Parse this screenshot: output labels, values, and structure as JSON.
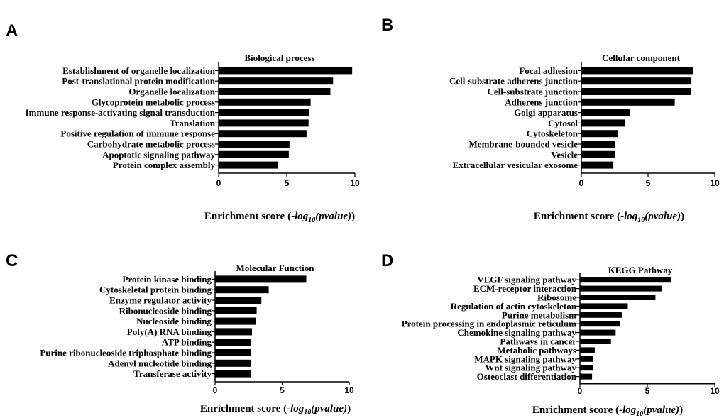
{
  "colors": {
    "bar": "#000000",
    "axis": "#000000",
    "background": "#ffffff"
  },
  "chart_data": [
    {
      "panel": "A",
      "type": "bar",
      "orientation": "horizontal",
      "title": "Biological process",
      "xlabel": {
        "prefix": "Enrichment score (-",
        "log": "log",
        "sub": "10",
        "arg": "(pvalue)",
        "suffix": ")"
      },
      "xlim": [
        0,
        10
      ],
      "xticks": [
        0,
        5,
        10
      ],
      "categories": [
        "Establishment of organelle localization",
        "Post-translational protein modification",
        "Organelle localization",
        "Glycoprotein metabolic process",
        "Immune response-activating signal transduction",
        "Translation",
        "Positive regulation of immune response",
        "Carbohydrate metabolic process",
        "Apoptotic signaling pathway",
        "Protein complex assembly"
      ],
      "values": [
        9.8,
        8.4,
        8.2,
        6.75,
        6.65,
        6.6,
        6.45,
        5.2,
        5.15,
        4.35
      ]
    },
    {
      "panel": "B",
      "type": "bar",
      "orientation": "horizontal",
      "title": "Cellular component",
      "xlabel": {
        "prefix": "Enrichment score (-",
        "log": "log",
        "sub": "10",
        "arg": "(pvalue)",
        "suffix": ")"
      },
      "xlim": [
        0,
        10
      ],
      "xticks": [
        0,
        5,
        10
      ],
      "categories": [
        "Focal adhesion",
        "Cell-substrate adherens junction",
        "Cell-substrate junction",
        "Adherens junction",
        "Golgi apparatus",
        "Cytosol",
        "Cytoskeleton",
        "Membrane-bounded vesicle",
        "Vesicle",
        "Extracellular vesicular exosome"
      ],
      "values": [
        8.35,
        8.25,
        8.2,
        7.0,
        3.65,
        3.3,
        2.75,
        2.55,
        2.5,
        2.4
      ]
    },
    {
      "panel": "C",
      "type": "bar",
      "orientation": "horizontal",
      "title": "Molecular Function",
      "xlabel": {
        "prefix": "Enrichment score (-",
        "log": "log",
        "sub": "10",
        "arg": "(pvalue)",
        "suffix": ")"
      },
      "xlim": [
        0,
        10
      ],
      "xticks": [
        0,
        5,
        10
      ],
      "categories": [
        "Protein kinase binding",
        "Cytoskeletal protein binding",
        "Enzyme regulator activity",
        "Ribonucleoside binding",
        "Nucleoside binding",
        "Poly(A) RNA binding",
        "ATP binding",
        "Purine ribonucleoside triphosphate binding",
        "Adenyl nucleotide binding",
        "Transferase activity"
      ],
      "values": [
        6.8,
        4.0,
        3.45,
        3.1,
        3.05,
        2.75,
        2.7,
        2.7,
        2.7,
        2.65
      ]
    },
    {
      "panel": "D",
      "type": "bar",
      "orientation": "horizontal",
      "title": "KEGG Pathway",
      "xlabel": {
        "prefix": "Enrichment score (-",
        "log": "log",
        "sub": "10",
        "arg": "(pvalue)",
        "suffix": ")"
      },
      "xlim": [
        0,
        10
      ],
      "xticks": [
        0,
        5,
        10
      ],
      "categories": [
        "VEGF signaling pathway",
        "ECM-receptor interaction",
        "Ribosome",
        "Regulation of actin cytoskeleton",
        "Purine metabolism",
        "Protein processing in endoplasmic reticulum",
        "Chemokine signaling pathway",
        "Pathways in cancer",
        "Metabolic pathways",
        "MAPK signaling pathway",
        "Wnt signaling pathway",
        "Osteoclast differentiation"
      ],
      "values": [
        6.75,
        6.05,
        5.6,
        3.55,
        3.1,
        3.0,
        2.65,
        2.3,
        1.1,
        0.95,
        0.95,
        0.9
      ]
    }
  ]
}
